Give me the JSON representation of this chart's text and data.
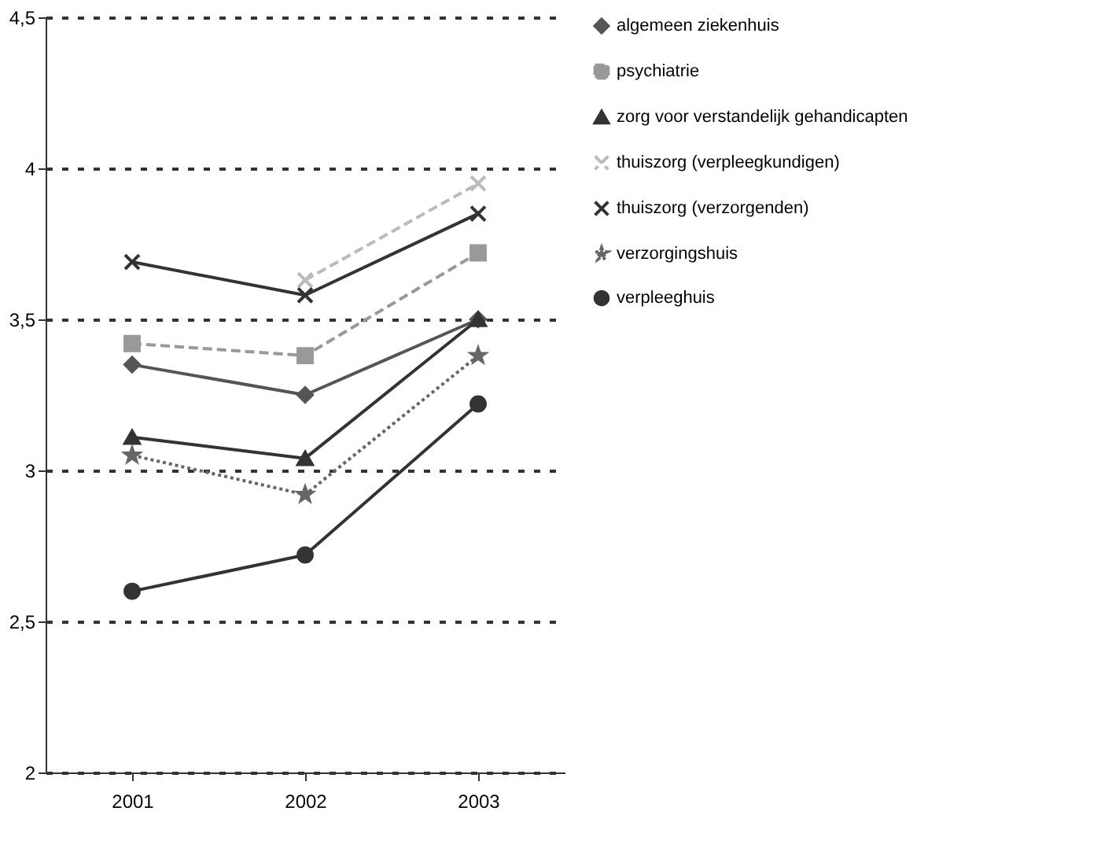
{
  "chart_data": {
    "type": "line",
    "categories": [
      "2001",
      "2002",
      "2003"
    ],
    "ylim": [
      2,
      4.5
    ],
    "yticks": [
      2,
      {
        "value": 2.5,
        "label": "2,5"
      },
      3,
      {
        "value": 3.5,
        "label": "3,5"
      },
      4,
      {
        "value": 4.5,
        "label": "4,5"
      }
    ],
    "grid": "y",
    "legend": "right",
    "series": [
      {
        "name": "algemeen ziekenhuis",
        "color": "#555555",
        "marker": "diamond",
        "line_style": "solid",
        "values": [
          3.35,
          3.25,
          3.5
        ]
      },
      {
        "name": "psychiatrie",
        "color": "#999999",
        "marker": "square",
        "line_style": "dashed",
        "values": [
          3.42,
          3.38,
          3.72
        ]
      },
      {
        "name": "zorg voor verstandelijk gehandicapten",
        "color": "#333333",
        "marker": "triangle",
        "line_style": "solid",
        "values": [
          3.11,
          3.04,
          3.5
        ]
      },
      {
        "name": "thuiszorg (verpleegkundigen)",
        "color": "#bbbbbb",
        "marker": "cross",
        "line_style": "dashed",
        "values": [
          null,
          3.63,
          3.95
        ]
      },
      {
        "name": "thuiszorg (verzorgenden)",
        "color": "#333333",
        "marker": "cross",
        "line_style": "solid",
        "values": [
          3.69,
          3.58,
          3.85
        ]
      },
      {
        "name": "verzorgingshuis",
        "color": "#666666",
        "marker": "star",
        "line_style": "dotted",
        "values": [
          3.05,
          2.92,
          3.38
        ]
      },
      {
        "name": "verpleeghuis",
        "color": "#333333",
        "marker": "circle",
        "line_style": "solid",
        "values": [
          2.6,
          2.72,
          3.22
        ]
      }
    ]
  }
}
